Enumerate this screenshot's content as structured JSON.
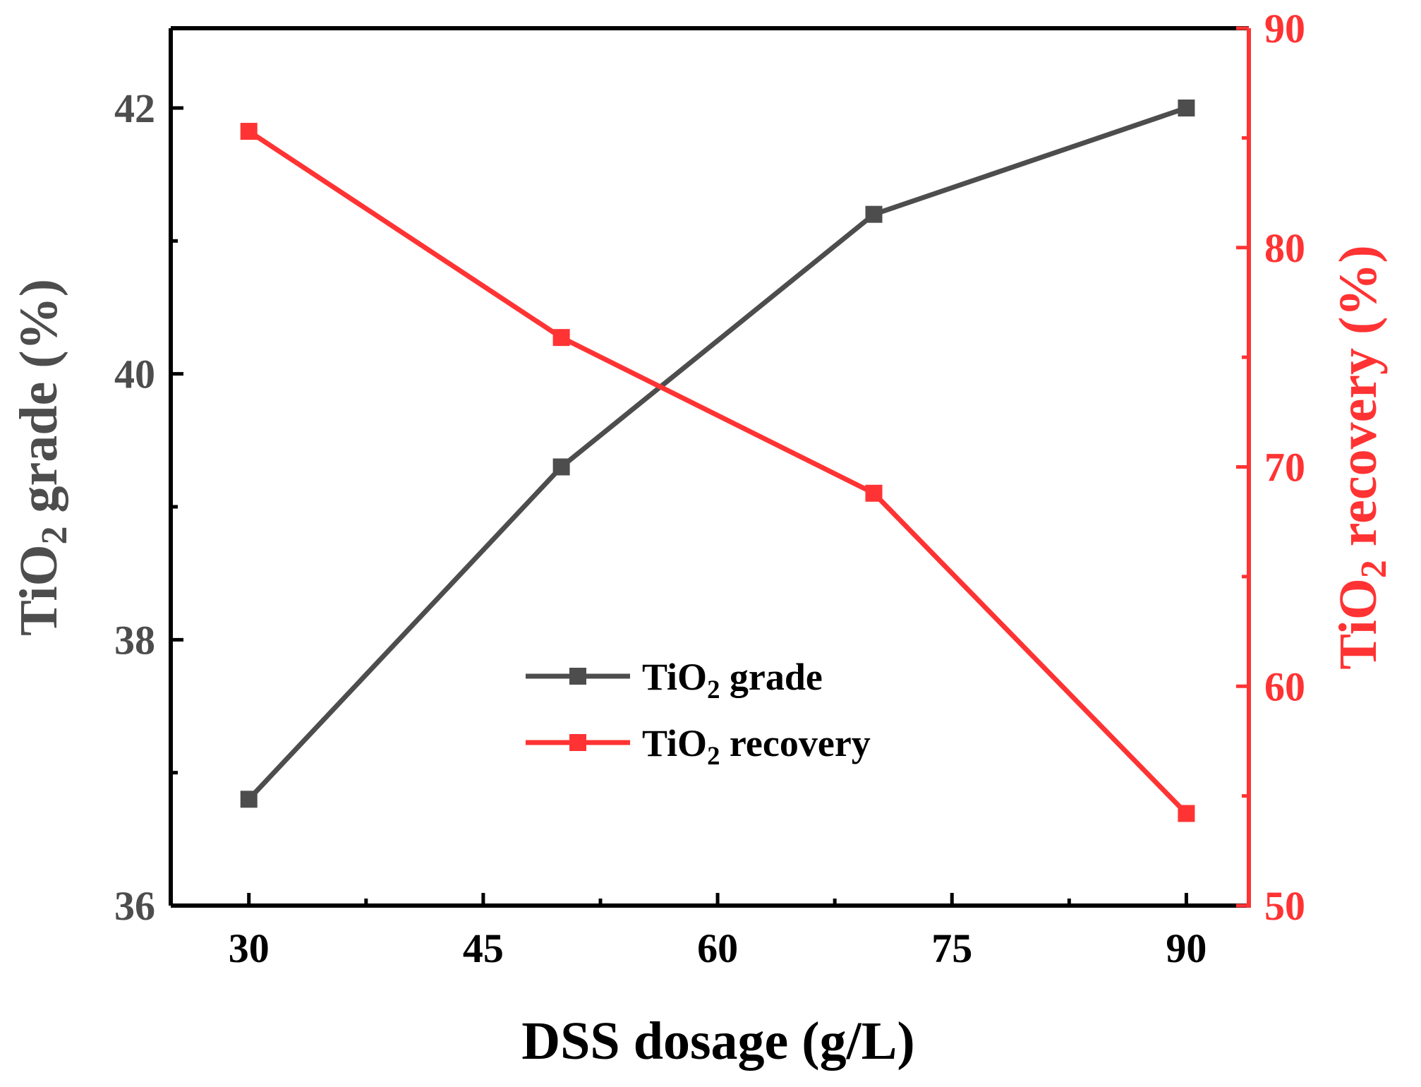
{
  "chart_data": {
    "type": "line",
    "x": [
      30,
      50,
      70,
      90
    ],
    "xlabel": "DSS dosage (g/L)",
    "xlim": [
      25,
      94
    ],
    "xticks": [
      "30",
      "45",
      "60",
      "75",
      "90"
    ],
    "y_left": {
      "label_main": "TiO",
      "label_sub": "2",
      "label_rest": " grade (%)",
      "ylim": [
        36,
        42.6
      ],
      "ticks": [
        "36",
        "38",
        "40",
        "42"
      ],
      "color": "#4d4d4d"
    },
    "y_right": {
      "label_main": "TiO",
      "label_sub": "2",
      "label_rest": " recovery (%)",
      "ylim": [
        50,
        90
      ],
      "ticks": [
        "50",
        "60",
        "70",
        "80",
        "90"
      ],
      "color": "#ff3333"
    },
    "series": [
      {
        "name_main": "TiO",
        "name_sub": "2",
        "name_rest": " grade",
        "axis": "left",
        "color": "#4d4d4d",
        "values": [
          36.8,
          39.3,
          41.2,
          42.0
        ]
      },
      {
        "name_main": "TiO",
        "name_sub": "2",
        "name_rest": " recovery",
        "axis": "right",
        "color": "#ff3333",
        "values": [
          85.3,
          75.9,
          68.8,
          54.2
        ]
      }
    ]
  }
}
